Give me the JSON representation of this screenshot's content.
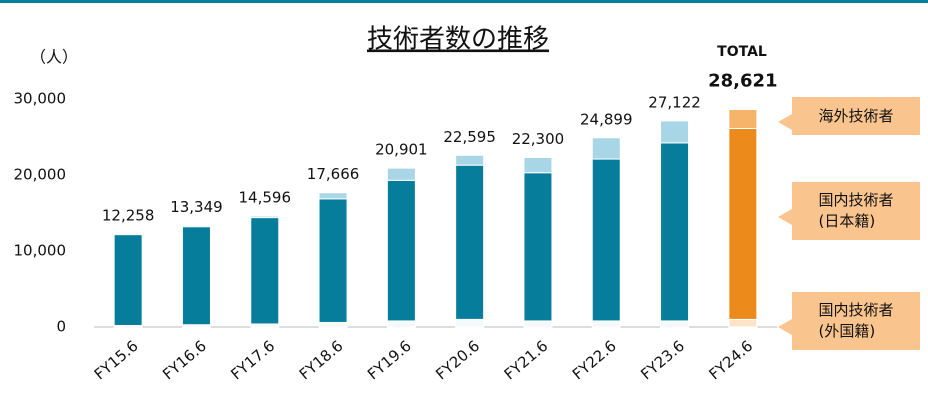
{
  "chart_data": {
    "type": "stacked_bar",
    "title": "技術者数の推移",
    "y_label": "（人）",
    "total_heading": "TOTAL",
    "categories": [
      "FY15.6",
      "FY16.6",
      "FY17.6",
      "FY18.6",
      "FY19.6",
      "FY20.6",
      "FY21.6",
      "FY22.6",
      "FY23.6",
      "FY24.6"
    ],
    "series": [
      {
        "name": "国内技術者\n(外国籍)",
        "colors": [
          "#f4fafc",
          "#f4fafc",
          "#f4fafc",
          "#f4fafc",
          "#f4fafc",
          "#f4fafc",
          "#f4fafc",
          "#f4fafc",
          "#f4fafc",
          "#fde4c8"
        ],
        "values": [
          200,
          300,
          400,
          600,
          800,
          1000,
          800,
          800,
          800,
          1000
        ]
      },
      {
        "name": "国内技術者\n(日本籍)",
        "colors": [
          "#057d9b",
          "#057d9b",
          "#057d9b",
          "#057d9b",
          "#057d9b",
          "#057d9b",
          "#057d9b",
          "#057d9b",
          "#057d9b",
          "#ec8a1c"
        ],
        "values": [
          11958,
          12899,
          13996,
          16266,
          18501,
          20295,
          19500,
          21299,
          23422,
          25121
        ]
      },
      {
        "name": "海外技術者",
        "colors": [
          "#a9d6e6",
          "#a9d6e6",
          "#a9d6e6",
          "#a9d6e6",
          "#a9d6e6",
          "#a9d6e6",
          "#a9d6e6",
          "#a9d6e6",
          "#a9d6e6",
          "#f6b46b"
        ],
        "values": [
          100,
          150,
          200,
          800,
          1600,
          1300,
          2000,
          2800,
          2900,
          2500
        ]
      }
    ],
    "totals": [
      12258,
      13349,
      14596,
      17666,
      20901,
      22595,
      22300,
      24899,
      27122,
      28621
    ],
    "total_labels": [
      "12,258",
      "13,349",
      "14,596",
      "17,666",
      "20,901",
      "22,595",
      "22,300",
      "24,899",
      "27,122",
      "28,621"
    ],
    "ylim": [
      0,
      30000
    ],
    "yticks": [
      {
        "value": 0,
        "label": "0"
      },
      {
        "value": 10000,
        "label": "10,000"
      },
      {
        "value": 20000,
        "label": "20,000"
      },
      {
        "value": 30000,
        "label": "30,000"
      }
    ]
  }
}
